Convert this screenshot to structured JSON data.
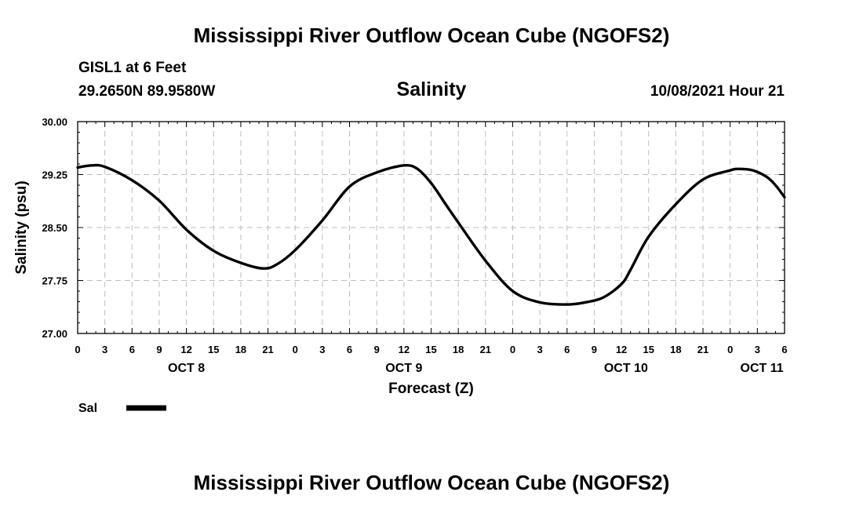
{
  "header": {
    "title": "Mississippi River Outflow Ocean Cube (NGOFS2)",
    "station_name": "GISL1 at 6 Feet",
    "station_coords": "29.2650N  89.9580W",
    "variable": "Salinity",
    "timestamp": "10/08/2021 Hour 21"
  },
  "footer": {
    "title": "Mississippi River Outflow Ocean Cube (NGOFS2)"
  },
  "chart_data": {
    "type": "line",
    "title": "Salinity",
    "xlabel": "Forecast (Z)",
    "ylabel": "Salinity (psu)",
    "xlim": [
      0,
      78
    ],
    "ylim": [
      27.0,
      30.0
    ],
    "grid": true,
    "y_ticks": [
      27.0,
      27.75,
      28.5,
      29.25,
      30.0
    ],
    "y_tick_labels": [
      "27.00",
      "27.75",
      "28.50",
      "29.25",
      "30.00"
    ],
    "x_ticks": [
      0,
      3,
      6,
      9,
      12,
      15,
      18,
      21,
      24,
      27,
      30,
      33,
      36,
      39,
      42,
      45,
      48,
      51,
      54,
      57,
      60,
      63,
      66,
      69,
      72,
      75,
      78
    ],
    "x_tick_labels": [
      "0",
      "3",
      "6",
      "9",
      "12",
      "15",
      "18",
      "21",
      "0",
      "3",
      "6",
      "9",
      "12",
      "15",
      "18",
      "21",
      "0",
      "3",
      "6",
      "9",
      "12",
      "15",
      "18",
      "21",
      "0",
      "3",
      "6"
    ],
    "date_labels": [
      {
        "text": "OCT 8",
        "x": 12
      },
      {
        "text": "OCT 9",
        "x": 36
      },
      {
        "text": "OCT 10",
        "x": 60.5
      },
      {
        "text": "OCT 11",
        "x": 75.5
      }
    ],
    "legend": {
      "position": "bottom-left",
      "entries": [
        {
          "name": "Sal",
          "style": "thick-solid-black"
        }
      ]
    },
    "series": [
      {
        "name": "Sal",
        "color": "#000000",
        "x": [
          0,
          1.5,
          3,
          6,
          9,
          12,
          15,
          18,
          20.5,
          22,
          24,
          27,
          30,
          33,
          36,
          37.5,
          39,
          40.5,
          42,
          45,
          48,
          51,
          54,
          56,
          58,
          60,
          61,
          63,
          66,
          69,
          72,
          73,
          74.5,
          76,
          77,
          78
        ],
        "y": [
          29.35,
          29.38,
          29.36,
          29.17,
          28.88,
          28.47,
          28.17,
          28.0,
          27.92,
          27.98,
          28.18,
          28.6,
          29.08,
          29.28,
          29.38,
          29.33,
          29.13,
          28.85,
          28.57,
          28.03,
          27.6,
          27.44,
          27.41,
          27.44,
          27.51,
          27.7,
          27.9,
          28.37,
          28.83,
          29.18,
          29.31,
          29.33,
          29.31,
          29.22,
          29.1,
          28.93
        ]
      }
    ]
  }
}
